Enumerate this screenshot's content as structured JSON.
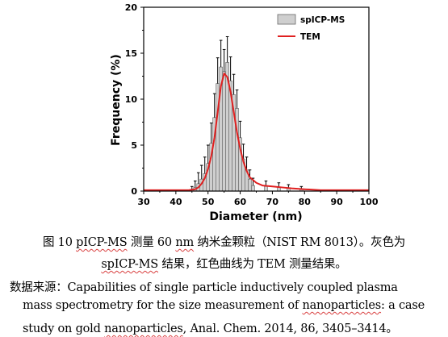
{
  "chart_data": {
    "type": "bar",
    "xlabel": "Diameter (nm)",
    "ylabel": "Frequency (%)",
    "xlim": [
      30,
      100
    ],
    "ylim": [
      0,
      20
    ],
    "x_ticks": [
      30,
      40,
      50,
      60,
      70,
      80,
      90,
      100
    ],
    "y_ticks": [
      0,
      5,
      10,
      15,
      20
    ],
    "grid": false,
    "legend_position": "top-right",
    "legend": [
      "spICP-MS",
      "TEM"
    ],
    "series": [
      {
        "name": "spICP-MS",
        "kind": "histogram",
        "color": "#cfcfcf",
        "bin_width": 1,
        "x": [
          45,
          46,
          47,
          48,
          49,
          50,
          51,
          52,
          53,
          54,
          55,
          56,
          57,
          58,
          59,
          60,
          61,
          62,
          63,
          64,
          68,
          72,
          75,
          79
        ],
        "values": [
          0.2,
          0.4,
          0.8,
          1.3,
          1.9,
          3.0,
          5.2,
          8.0,
          11.7,
          13.5,
          13.0,
          14.0,
          12.0,
          10.5,
          9.0,
          5.8,
          3.5,
          2.3,
          1.3,
          0.6,
          0.5,
          0.4,
          0.3,
          0.2
        ],
        "errors": [
          0.3,
          0.7,
          1.2,
          1.5,
          1.8,
          2.0,
          2.2,
          2.6,
          2.8,
          2.9,
          2.4,
          2.8,
          2.6,
          2.2,
          2.0,
          1.8,
          1.6,
          1.4,
          1.0,
          0.8,
          0.6,
          0.5,
          0.4,
          0.3
        ]
      },
      {
        "name": "TEM",
        "kind": "line",
        "color": "#e02020",
        "x": [
          30,
          35,
          40,
          44,
          46,
          47,
          48,
          49,
          50,
          51,
          52,
          53,
          54,
          55,
          56,
          57,
          58,
          59,
          60,
          61,
          62,
          63,
          65,
          67,
          70,
          73,
          76,
          80,
          85,
          90,
          95,
          100
        ],
        "values": [
          0.1,
          0.1,
          0.1,
          0.1,
          0.2,
          0.4,
          0.8,
          1.4,
          2.4,
          3.8,
          5.8,
          8.6,
          11.4,
          12.8,
          12.4,
          10.8,
          8.6,
          6.4,
          4.6,
          3.2,
          2.2,
          1.5,
          0.9,
          0.6,
          0.5,
          0.4,
          0.3,
          0.2,
          0.1,
          0.1,
          0.1,
          0.1
        ]
      }
    ]
  },
  "caption": {
    "line1_prefix": "图 10 ",
    "line1_method": "pICP-MS",
    "line1_mid": " 测量 60 ",
    "line1_unit": "nm",
    "line1_suffix": " 纳米金颗粒（NIST RM 8013）。灰色为",
    "line2_method": "spICP-MS",
    "line2_suffix": " 结果，红色曲线为 TEM 测量结果。",
    "source_label": "数据来源：",
    "source_text1": "Capabilities of single particle inductively coupled plasma",
    "source_line2a": "mass spectrometry for the size measurement of ",
    "source_line2b": "nanoparticles",
    "source_line2c": ": a case",
    "source_line3a": "study on gold ",
    "source_line3b": "nanoparticles",
    "source_line3c": ", Anal. Chem. 2014, 86, 3405–3414。"
  }
}
